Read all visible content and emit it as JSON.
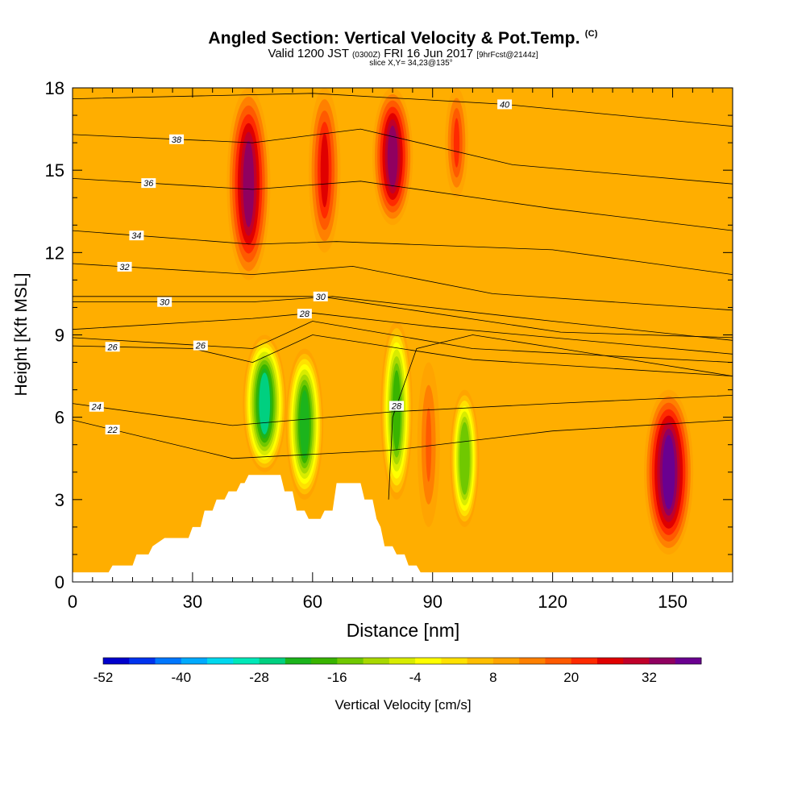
{
  "chart_data": {
    "type": "heatmap",
    "title": "Angled Section: Vertical Velocity & Pot.Temp.",
    "title_unit": "(C)",
    "subtitle_valid": "Valid 1200 JST",
    "subtitle_z": "(0300Z)",
    "subtitle_date": "FRI 16 Jun 2017",
    "subtitle_fcst": "[9hrFcst@2144z]",
    "slice_label": "slice X,Y= 34,23@135°",
    "xlabel": "Distance [nm]",
    "ylabel": "Height [Kft MSL]",
    "xlim": [
      0,
      165
    ],
    "ylim": [
      0,
      18
    ],
    "x_ticks": [
      "0",
      "30",
      "60",
      "90",
      "120",
      "150"
    ],
    "y_ticks": [
      "0",
      "3",
      "6",
      "9",
      "12",
      "15",
      "18"
    ],
    "colorbar": {
      "label": "Vertical Velocity [cm/s]",
      "tick_labels": [
        "-52",
        "-40",
        "-28",
        "-16",
        "-4",
        "8",
        "20",
        "32"
      ],
      "colors": [
        "#0000cc",
        "#0033ee",
        "#0077ff",
        "#00aaff",
        "#00d8ee",
        "#00e8b8",
        "#00d080",
        "#1cb41c",
        "#39b400",
        "#70c800",
        "#a8d800",
        "#d8ec00",
        "#ffff00",
        "#ffe100",
        "#ffbe00",
        "#ffa400",
        "#ff8000",
        "#ff5a00",
        "#ff2a00",
        "#e00000",
        "#c0002a",
        "#900060",
        "#6a0090"
      ]
    },
    "velocity_features": [
      {
        "x": 44,
        "z_bottom": 11,
        "z_top": 18,
        "w": 30
      },
      {
        "x": 63,
        "z_bottom": 12,
        "z_top": 18,
        "w": 22
      },
      {
        "x": 80,
        "z_bottom": 13,
        "z_top": 18,
        "w": 28
      },
      {
        "x": 96,
        "z_bottom": 14,
        "z_top": 18,
        "w": 16
      },
      {
        "x": 48,
        "z_bottom": 4,
        "z_top": 9,
        "w": -30
      },
      {
        "x": 58,
        "z_bottom": 3,
        "z_top": 8.5,
        "w": -26
      },
      {
        "x": 81,
        "z_bottom": 3,
        "z_top": 9.5,
        "w": -22
      },
      {
        "x": 98,
        "z_bottom": 2,
        "z_top": 7,
        "w": -20
      },
      {
        "x": 89,
        "z_bottom": 2,
        "z_top": 8,
        "w": 14
      },
      {
        "x": 149,
        "z_bottom": 1,
        "z_top": 7,
        "w": 34
      }
    ],
    "terrain": [
      [
        0,
        0.35
      ],
      [
        9,
        0.35
      ],
      [
        10,
        0.6
      ],
      [
        15,
        0.6
      ],
      [
        16,
        1.0
      ],
      [
        19,
        1.0
      ],
      [
        20,
        1.3
      ],
      [
        23,
        1.6
      ],
      [
        29,
        1.6
      ],
      [
        30,
        2.0
      ],
      [
        32,
        2.0
      ],
      [
        33,
        2.6
      ],
      [
        35,
        2.6
      ],
      [
        36,
        3.0
      ],
      [
        38,
        3.0
      ],
      [
        39,
        3.3
      ],
      [
        41,
        3.3
      ],
      [
        42,
        3.6
      ],
      [
        43,
        3.6
      ],
      [
        44,
        3.9
      ],
      [
        52,
        3.9
      ],
      [
        53,
        3.3
      ],
      [
        55,
        3.3
      ],
      [
        56,
        2.6
      ],
      [
        58,
        2.6
      ],
      [
        59,
        2.3
      ],
      [
        62,
        2.3
      ],
      [
        63,
        2.6
      ],
      [
        65,
        2.6
      ],
      [
        66,
        3.6
      ],
      [
        72,
        3.6
      ],
      [
        73,
        3.0
      ],
      [
        75,
        3.0
      ],
      [
        76,
        2.3
      ],
      [
        77,
        2.0
      ],
      [
        78,
        1.3
      ],
      [
        80,
        1.3
      ],
      [
        81,
        1.0
      ],
      [
        83,
        1.0
      ],
      [
        84,
        0.6
      ],
      [
        86,
        0.6
      ],
      [
        87,
        0.35
      ],
      [
        165,
        0.35
      ]
    ],
    "isentropes": [
      {
        "label": "22",
        "label_x": 10,
        "points": [
          [
            0,
            5.9
          ],
          [
            40,
            4.5
          ],
          [
            80,
            4.8
          ],
          [
            120,
            5.5
          ],
          [
            165,
            5.9
          ]
        ]
      },
      {
        "label": "24",
        "label_x": 6,
        "points": [
          [
            0,
            6.5
          ],
          [
            40,
            5.7
          ],
          [
            80,
            6.2
          ],
          [
            120,
            6.5
          ],
          [
            165,
            6.8
          ]
        ]
      },
      {
        "label": "26",
        "label_x": 10,
        "points": [
          [
            0,
            8.6
          ],
          [
            30,
            8.5
          ],
          [
            45,
            8.0
          ],
          [
            60,
            9.0
          ],
          [
            100,
            8.1
          ],
          [
            165,
            7.5
          ]
        ]
      },
      {
        "label": "26",
        "label_x": 32,
        "points": [
          [
            0,
            8.9
          ],
          [
            45,
            8.5
          ],
          [
            60,
            9.5
          ],
          [
            100,
            8.5
          ],
          [
            165,
            8.0
          ]
        ]
      },
      {
        "label": "28",
        "label_x": 58,
        "points": [
          [
            0,
            9.2
          ],
          [
            45,
            9.6
          ],
          [
            60,
            9.8
          ],
          [
            90,
            9.3
          ],
          [
            165,
            8.3
          ]
        ]
      },
      {
        "label": "28",
        "label_x": 81,
        "points": [
          [
            79,
            3.0
          ],
          [
            80,
            6.0
          ],
          [
            86,
            8.5
          ],
          [
            100,
            9.0
          ],
          [
            122,
            8.5
          ],
          [
            165,
            7.5
          ]
        ]
      },
      {
        "label": "30",
        "label_x": 23,
        "points": [
          [
            0,
            10.2
          ],
          [
            45,
            10.2
          ],
          [
            65,
            10.4
          ],
          [
            120,
            9.5
          ],
          [
            165,
            8.8
          ]
        ]
      },
      {
        "label": "30",
        "label_x": 62,
        "points": [
          [
            0,
            10.4
          ],
          [
            62,
            10.4
          ],
          [
            122,
            9.1
          ],
          [
            165,
            8.9
          ]
        ]
      },
      {
        "label": "32",
        "label_x": 13,
        "points": [
          [
            0,
            11.6
          ],
          [
            45,
            11.2
          ],
          [
            70,
            11.5
          ],
          [
            105,
            10.5
          ],
          [
            165,
            9.9
          ]
        ]
      },
      {
        "label": "34",
        "label_x": 16,
        "points": [
          [
            0,
            12.8
          ],
          [
            45,
            12.3
          ],
          [
            66,
            12.4
          ],
          [
            120,
            12.1
          ],
          [
            165,
            11.2
          ]
        ]
      },
      {
        "label": "36",
        "label_x": 19,
        "points": [
          [
            0,
            14.7
          ],
          [
            45,
            14.3
          ],
          [
            72,
            14.6
          ],
          [
            120,
            13.6
          ],
          [
            165,
            12.8
          ]
        ]
      },
      {
        "label": "38",
        "label_x": 26,
        "points": [
          [
            0,
            16.3
          ],
          [
            45,
            16.0
          ],
          [
            72,
            16.5
          ],
          [
            110,
            15.2
          ],
          [
            165,
            14.5
          ]
        ]
      },
      {
        "label": "40",
        "label_x": 108,
        "points": [
          [
            0,
            17.6
          ],
          [
            60,
            17.8
          ],
          [
            108,
            17.4
          ],
          [
            165,
            16.6
          ]
        ]
      }
    ]
  }
}
